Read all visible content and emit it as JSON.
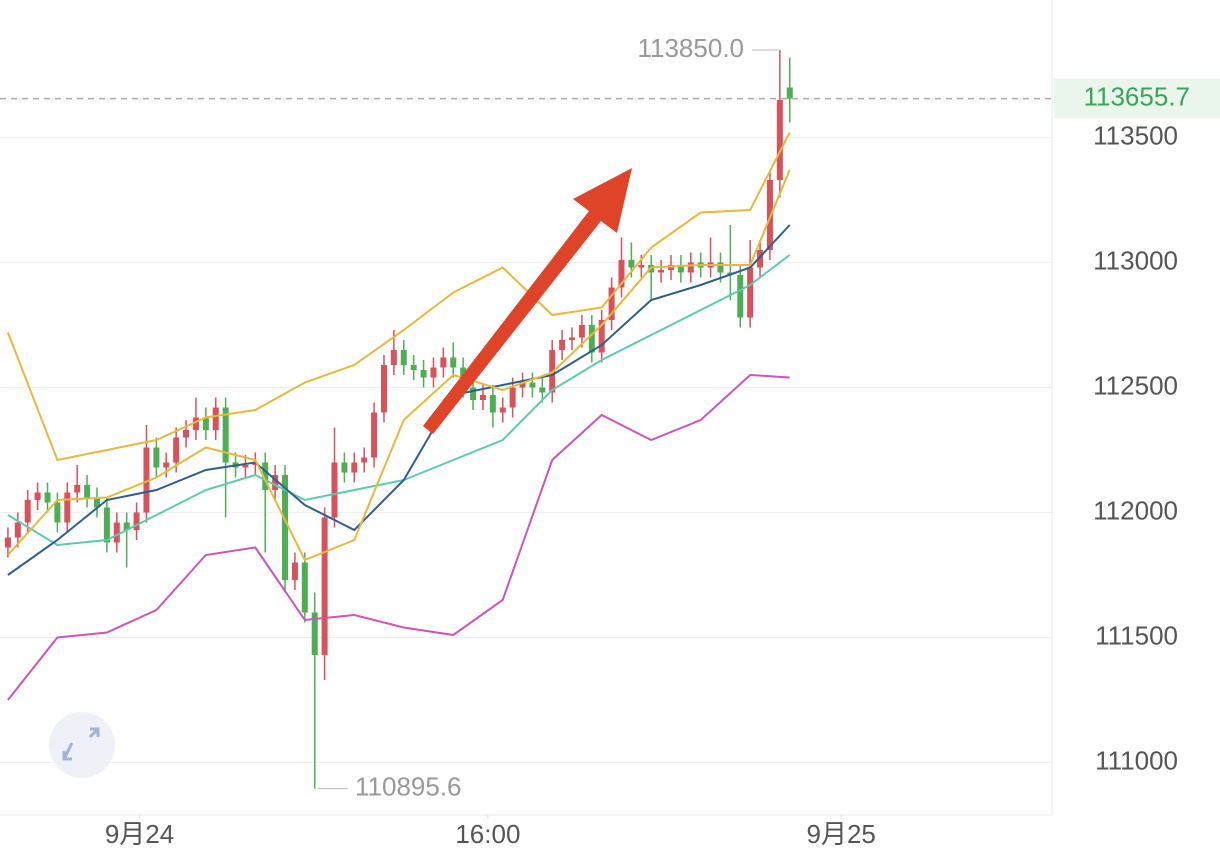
{
  "chart_data": {
    "type": "candlestick",
    "open": [
      111860,
      111900,
      111960,
      112050,
      112080,
      112040,
      111960,
      112080,
      112110,
      112060,
      112020,
      111880,
      111960,
      111930,
      112000,
      112260,
      112180,
      112200,
      112300,
      112330,
      112380,
      112330,
      112420,
      112200,
      112180,
      112190,
      112200,
      112090,
      112150,
      111730,
      111800,
      111600,
      111430,
      111980,
      112200,
      112160,
      112200,
      112220,
      112400,
      112590,
      112650,
      112590,
      112570,
      112540,
      112580,
      112620,
      112580,
      112500,
      112450,
      112470,
      112400,
      112420,
      112500,
      112520,
      112500,
      112480,
      112650,
      112690,
      112700,
      112750,
      112640,
      112770,
      112900,
      113010,
      112980,
      112990,
      112960,
      112970,
      112990,
      112960,
      113000,
      112980,
      113000,
      112960,
      112950,
      112780,
      112980,
      113050,
      113330,
      113700
    ],
    "high": [
      111940,
      112000,
      112090,
      112120,
      112120,
      112080,
      112120,
      112190,
      112150,
      112100,
      112060,
      112000,
      112000,
      112040,
      112350,
      112300,
      112240,
      112340,
      112370,
      112460,
      112420,
      112460,
      112460,
      112240,
      112230,
      112240,
      112240,
      112190,
      112190,
      111840,
      111840,
      111680,
      112020,
      112340,
      112240,
      112240,
      112260,
      112440,
      112630,
      112730,
      112690,
      112630,
      112610,
      112620,
      112660,
      112680,
      112620,
      112540,
      112510,
      112510,
      112460,
      112540,
      112560,
      112560,
      112540,
      112690,
      112730,
      112740,
      112790,
      112790,
      112810,
      112940,
      113100,
      113080,
      113030,
      113030,
      113010,
      113030,
      113030,
      113040,
      113040,
      113100,
      113040,
      113150,
      112990,
      113090,
      113090,
      113370,
      113850,
      113820
    ],
    "low": [
      111820,
      111860,
      111920,
      112010,
      112000,
      111920,
      111920,
      112040,
      112020,
      111980,
      111840,
      111840,
      111780,
      111890,
      111960,
      112140,
      112140,
      112160,
      112260,
      112290,
      112290,
      112290,
      111980,
      112140,
      112140,
      112150,
      111840,
      112050,
      111680,
      111690,
      111560,
      110895.6,
      111330,
      111940,
      112120,
      112120,
      112160,
      112180,
      112360,
      112550,
      112550,
      112530,
      112500,
      112500,
      112540,
      112540,
      112460,
      112410,
      112410,
      112340,
      112360,
      112380,
      112460,
      112460,
      112440,
      112440,
      112610,
      112650,
      112660,
      112600,
      112600,
      112730,
      112860,
      112940,
      112940,
      112850,
      112920,
      112930,
      112920,
      112920,
      112940,
      112940,
      112920,
      112850,
      112740,
      112740,
      112940,
      113010,
      113260,
      113560
    ],
    "close": [
      111900,
      111960,
      112050,
      112080,
      112040,
      111960,
      112080,
      112110,
      112060,
      112020,
      111880,
      111960,
      111930,
      112000,
      112260,
      112180,
      112200,
      112300,
      112330,
      112380,
      112330,
      112420,
      112200,
      112180,
      112190,
      112200,
      112090,
      112150,
      111730,
      111800,
      111600,
      111430,
      111980,
      112200,
      112160,
      112200,
      112220,
      112400,
      112590,
      112650,
      112590,
      112570,
      112540,
      112580,
      112620,
      112580,
      112500,
      112450,
      112470,
      112400,
      112420,
      112500,
      112520,
      112500,
      112480,
      112650,
      112690,
      112700,
      112750,
      112640,
      112770,
      112900,
      113010,
      112980,
      112990,
      112960,
      112970,
      112990,
      112960,
      113000,
      112980,
      113000,
      112960,
      112950,
      112780,
      112980,
      113050,
      113330,
      113650,
      113655.7
    ],
    "up_color": "#d9515a",
    "down_color": "#4fae55",
    "lines": [
      {
        "color": "#e6b93c",
        "x": [
          0,
          5,
          10,
          15,
          20,
          25,
          30,
          35,
          40,
          45,
          50,
          55,
          60,
          65,
          70,
          75,
          79
        ],
        "values": [
          112720,
          112210,
          112250,
          112290,
          112380,
          112410,
          112520,
          112590,
          112730,
          112880,
          112980,
          112790,
          112820,
          113060,
          113200,
          113210,
          113520
        ]
      },
      {
        "color": "#cc55b8",
        "x": [
          0,
          5,
          10,
          15,
          20,
          25,
          30,
          35,
          40,
          45,
          50,
          55,
          60,
          65,
          70,
          75,
          79
        ],
        "values": [
          111250,
          111500,
          111520,
          111610,
          111830,
          111860,
          111570,
          111590,
          111540,
          111510,
          111650,
          112210,
          112390,
          112290,
          112370,
          112550,
          112540
        ]
      },
      {
        "color": "#5fc9b0",
        "x": [
          0,
          5,
          10,
          15,
          20,
          25,
          30,
          35,
          40,
          45,
          50,
          55,
          60,
          65,
          70,
          75,
          79
        ],
        "values": [
          111990,
          111870,
          111890,
          111990,
          112090,
          112150,
          112050,
          112090,
          112130,
          112210,
          112290,
          112490,
          112610,
          112710,
          112810,
          112910,
          113030
        ]
      },
      {
        "color": "#2f5f8f",
        "x": [
          0,
          5,
          10,
          15,
          20,
          25,
          30,
          35,
          40,
          45,
          50,
          55,
          60,
          65,
          70,
          75,
          79
        ],
        "values": [
          111750,
          111890,
          112050,
          112090,
          112170,
          112200,
          112030,
          111930,
          112130,
          112470,
          112510,
          112550,
          112670,
          112850,
          112910,
          112980,
          113150
        ]
      },
      {
        "color": "#e6b93c",
        "x": [
          0,
          5,
          10,
          15,
          20,
          25,
          30,
          35,
          40,
          45,
          50,
          55,
          60,
          65,
          70,
          75,
          79
        ],
        "values": [
          111830,
          112050,
          112060,
          112140,
          112260,
          112210,
          111810,
          111890,
          112370,
          112550,
          112490,
          112560,
          112750,
          112980,
          112990,
          112990,
          113370
        ]
      }
    ],
    "ylim": [
      110790,
      114050
    ],
    "yticks": [
      111000,
      111500,
      112000,
      112500,
      113000,
      113500
    ],
    "xlim": [
      -0.8,
      105.5
    ],
    "xticks": [
      {
        "value": 13.3,
        "label": "9月24"
      },
      {
        "value": 48.5,
        "label": "16:00"
      },
      {
        "value": 84.2,
        "label": "9月25"
      }
    ],
    "grid": true,
    "last_price": 113655.7,
    "last_price_color": "#3aa55a",
    "high_label": {
      "value": 113850,
      "label": "113850.0"
    },
    "low_label": 110895.6
  }
}
